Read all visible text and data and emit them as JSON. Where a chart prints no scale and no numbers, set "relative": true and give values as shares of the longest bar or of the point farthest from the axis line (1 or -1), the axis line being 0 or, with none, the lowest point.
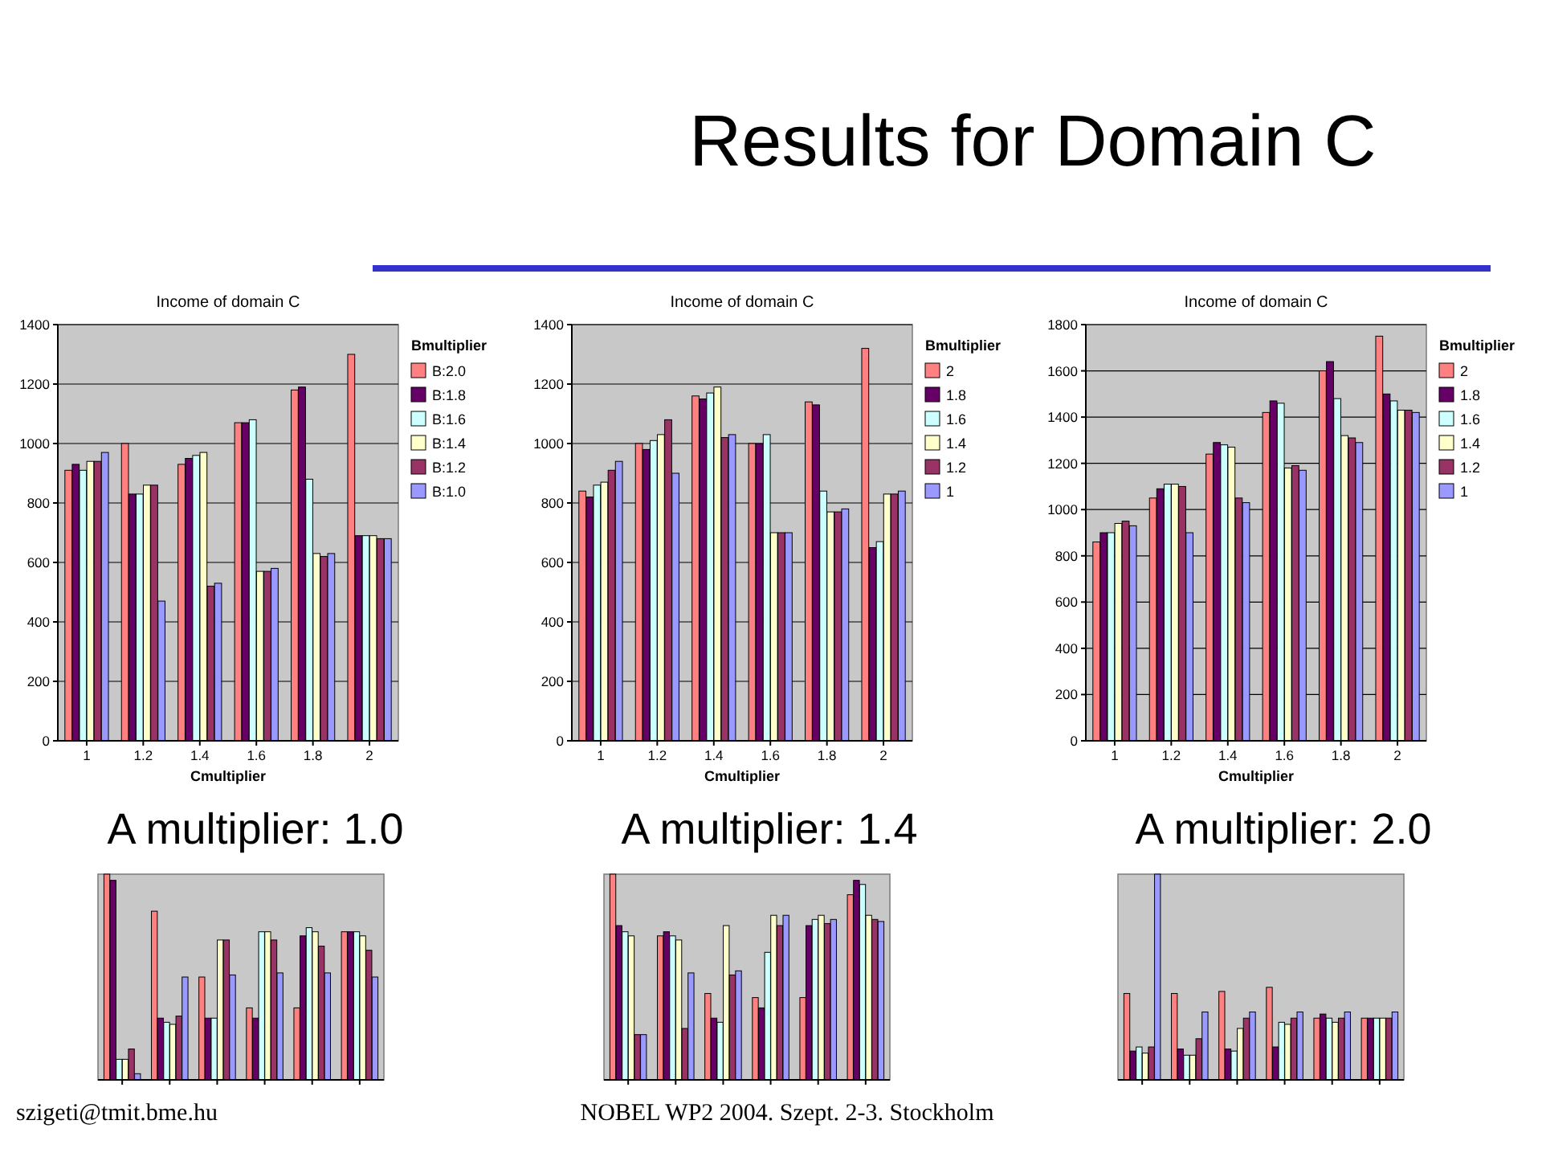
{
  "chart_data": [
    {
      "type": "other",
      "title": "Results for Domain C",
      "annotations": [
        "szigeti@tmit.bme.hu",
        "NOBEL WP2 2004. Szept. 2-3. Stockholm"
      ]
    },
    {
      "type": "bar",
      "title": "Income of domain C",
      "categories": [
        "1",
        "1.2",
        "1.4",
        "1.6",
        "1.8",
        "2"
      ],
      "xlabel": "Cmultiplier",
      "legend_title": "Bmultiplier",
      "legend": "right",
      "ylim": [
        0,
        1400
      ],
      "yticks": [
        0,
        200,
        400,
        600,
        800,
        1000,
        1200,
        1400
      ],
      "grid": "y",
      "annotations": [
        "A multiplier: 1.0"
      ],
      "series": [
        {
          "name": "B:2.0",
          "color": "#ff8080",
          "values": [
            910,
            1000,
            930,
            1070,
            1180,
            1300
          ]
        },
        {
          "name": "B:1.8",
          "color": "#660066",
          "values": [
            930,
            830,
            950,
            1070,
            1190,
            690
          ]
        },
        {
          "name": "B:1.6",
          "color": "#ccffff",
          "values": [
            910,
            830,
            960,
            1080,
            880,
            690
          ]
        },
        {
          "name": "B:1.4",
          "color": "#ffffcc",
          "values": [
            940,
            860,
            970,
            570,
            630,
            690
          ]
        },
        {
          "name": "B:1.2",
          "color": "#993366",
          "values": [
            940,
            860,
            520,
            570,
            620,
            680
          ]
        },
        {
          "name": "B:1.0",
          "color": "#9999ff",
          "values": [
            970,
            470,
            530,
            580,
            630,
            680
          ]
        }
      ]
    },
    {
      "type": "bar",
      "title": "Income of domain C",
      "categories": [
        "1",
        "1.2",
        "1.4",
        "1.6",
        "1.8",
        "2"
      ],
      "xlabel": "Cmultiplier",
      "legend_title": "Bmultiplier",
      "legend": "right",
      "ylim": [
        0,
        1400
      ],
      "yticks": [
        0,
        200,
        400,
        600,
        800,
        1000,
        1200,
        1400
      ],
      "grid": "y",
      "annotations": [
        "A multiplier: 1.4"
      ],
      "series": [
        {
          "name": "2",
          "color": "#ff8080",
          "values": [
            840,
            1000,
            1160,
            1000,
            1140,
            1320
          ]
        },
        {
          "name": "1.8",
          "color": "#660066",
          "values": [
            820,
            980,
            1150,
            1000,
            1130,
            650
          ]
        },
        {
          "name": "1.6",
          "color": "#ccffff",
          "values": [
            860,
            1010,
            1170,
            1030,
            840,
            670
          ]
        },
        {
          "name": "1.4",
          "color": "#ffffcc",
          "values": [
            870,
            1030,
            1190,
            700,
            770,
            830
          ]
        },
        {
          "name": "1.2",
          "color": "#993366",
          "values": [
            910,
            1080,
            1020,
            700,
            770,
            830
          ]
        },
        {
          "name": "1",
          "color": "#9999ff",
          "values": [
            940,
            900,
            1030,
            700,
            780,
            840
          ]
        }
      ]
    },
    {
      "type": "bar",
      "title": "Income of domain C",
      "categories": [
        "1",
        "1.2",
        "1.4",
        "1.6",
        "1.8",
        "2"
      ],
      "xlabel": "Cmultiplier",
      "legend_title": "Bmultiplier",
      "legend": "right",
      "ylim": [
        0,
        1800
      ],
      "yticks": [
        0,
        200,
        400,
        600,
        800,
        1000,
        1200,
        1400,
        1600,
        1800
      ],
      "grid": "y",
      "annotations": [
        "A multiplier: 2.0"
      ],
      "series": [
        {
          "name": "2",
          "color": "#ff8080",
          "values": [
            860,
            1050,
            1240,
            1420,
            1600,
            1750
          ]
        },
        {
          "name": "1.8",
          "color": "#660066",
          "values": [
            900,
            1090,
            1290,
            1470,
            1640,
            1500
          ]
        },
        {
          "name": "1.6",
          "color": "#ccffff",
          "values": [
            900,
            1110,
            1280,
            1460,
            1480,
            1470
          ]
        },
        {
          "name": "1.4",
          "color": "#ffffcc",
          "values": [
            940,
            1110,
            1270,
            1180,
            1320,
            1430
          ]
        },
        {
          "name": "1.2",
          "color": "#993366",
          "values": [
            950,
            1100,
            1050,
            1190,
            1310,
            1430
          ]
        },
        {
          "name": "1",
          "color": "#9999ff",
          "values": [
            930,
            900,
            1030,
            1170,
            1290,
            1420
          ]
        }
      ]
    },
    {
      "type": "bar",
      "relative": true,
      "categories": [
        null,
        null,
        null,
        null,
        null,
        null
      ],
      "series": [
        {
          "color": "#ff8080",
          "values": [
            1.0,
            0.82,
            0.5,
            0.35,
            0.35,
            0.72
          ]
        },
        {
          "color": "#660066",
          "values": [
            0.97,
            0.3,
            0.3,
            0.3,
            0.7,
            0.72
          ]
        },
        {
          "color": "#ccffff",
          "values": [
            0.1,
            0.28,
            0.3,
            0.72,
            0.74,
            0.72
          ]
        },
        {
          "color": "#ffffcc",
          "values": [
            0.1,
            0.27,
            0.68,
            0.72,
            0.72,
            0.7
          ]
        },
        {
          "color": "#993366",
          "values": [
            0.15,
            0.31,
            0.68,
            0.68,
            0.65,
            0.63
          ]
        },
        {
          "color": "#9999ff",
          "values": [
            0.03,
            0.5,
            0.51,
            0.52,
            0.52,
            0.5
          ]
        }
      ]
    },
    {
      "type": "bar",
      "relative": true,
      "categories": [
        null,
        null,
        null,
        null,
        null,
        null
      ],
      "series": [
        {
          "color": "#ff8080",
          "values": [
            1.0,
            0.7,
            0.42,
            0.4,
            0.4,
            0.9
          ]
        },
        {
          "color": "#660066",
          "values": [
            0.75,
            0.72,
            0.3,
            0.35,
            0.75,
            0.97
          ]
        },
        {
          "color": "#ccffff",
          "values": [
            0.72,
            0.7,
            0.28,
            0.62,
            0.78,
            0.95
          ]
        },
        {
          "color": "#ffffcc",
          "values": [
            0.7,
            0.68,
            0.75,
            0.8,
            0.8,
            0.8
          ]
        },
        {
          "color": "#993366",
          "values": [
            0.22,
            0.25,
            0.51,
            0.75,
            0.76,
            0.78
          ]
        },
        {
          "color": "#9999ff",
          "values": [
            0.22,
            0.52,
            0.53,
            0.8,
            0.78,
            0.77
          ]
        }
      ]
    },
    {
      "type": "bar",
      "relative": true,
      "categories": [
        null,
        null,
        null,
        null,
        null,
        null
      ],
      "series": [
        {
          "color": "#ff8080",
          "values": [
            0.42,
            0.42,
            0.43,
            0.45,
            0.3,
            0.3
          ]
        },
        {
          "color": "#660066",
          "values": [
            0.14,
            0.15,
            0.15,
            0.16,
            0.32,
            0.3
          ]
        },
        {
          "color": "#ccffff",
          "values": [
            0.16,
            0.12,
            0.14,
            0.28,
            0.3,
            0.3
          ]
        },
        {
          "color": "#ffffcc",
          "values": [
            0.13,
            0.12,
            0.25,
            0.27,
            0.28,
            0.3
          ]
        },
        {
          "color": "#993366",
          "values": [
            0.16,
            0.2,
            0.3,
            0.3,
            0.3,
            0.3
          ]
        },
        {
          "color": "#9999ff",
          "values": [
            1.0,
            0.33,
            0.33,
            0.33,
            0.33,
            0.33
          ]
        }
      ]
    }
  ]
}
